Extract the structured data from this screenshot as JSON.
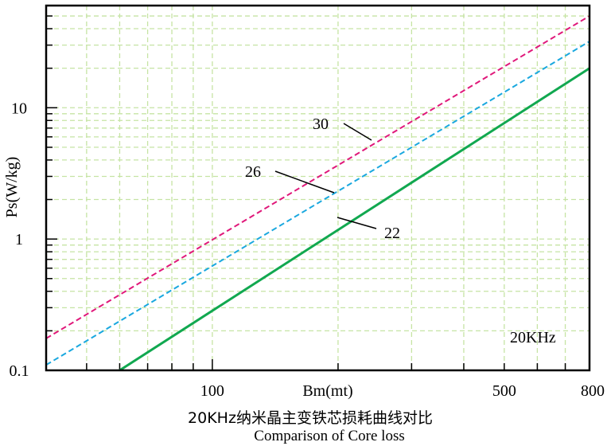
{
  "chart_data": {
    "type": "line",
    "title_cn": "20KHz纳米晶主变铁芯损耗曲线对比",
    "title_en": "Comparison of Core loss",
    "xlabel": "Bm(mt)",
    "ylabel": "Ps(W/kg)",
    "x_scale": "log",
    "y_scale": "log",
    "xlim": [
      40,
      800
    ],
    "ylim": [
      0.1,
      60
    ],
    "x_tick_labels": [
      "100",
      "500",
      "800"
    ],
    "y_tick_labels": [
      "0.1",
      "1",
      "10"
    ],
    "x_ticks": [
      100,
      500,
      800
    ],
    "y_ticks": [
      0.1,
      1,
      10
    ],
    "annotation": "20KHz",
    "grid": true,
    "series": [
      {
        "name": "30",
        "color": "#e0187a",
        "style": "dashed",
        "x": [
          40,
          800
        ],
        "y": [
          0.175,
          50
        ]
      },
      {
        "name": "26",
        "color": "#1aa8df",
        "style": "dashed",
        "x": [
          40,
          800
        ],
        "y": [
          0.11,
          32
        ]
      },
      {
        "name": "22",
        "color": "#11a850",
        "style": "solid",
        "x": [
          60,
          800
        ],
        "y": [
          0.1,
          20
        ]
      }
    ]
  }
}
